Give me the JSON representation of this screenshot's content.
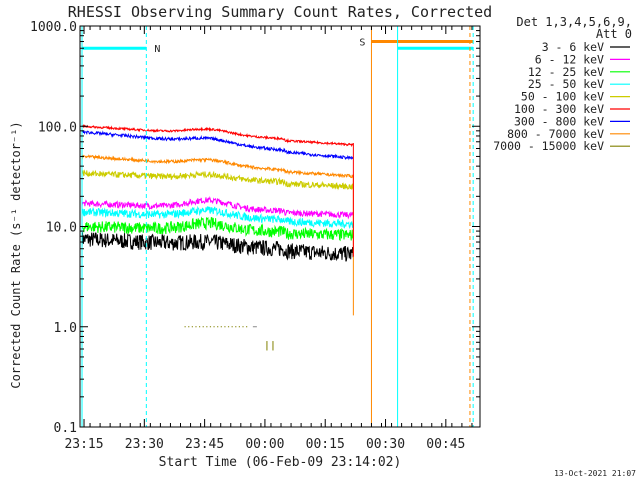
{
  "chart_data": {
    "type": "line",
    "title": "RHESSI Observing Summary Count Rates, Corrected",
    "ylabel": "Corrected Count Rate (s⁻¹ detector⁻¹)",
    "xlabel": "Start Time (06-Feb-09 23:14:02)",
    "y_scale": "log",
    "ylim": [
      0.1,
      1000
    ],
    "xlim": [
      "23:14:02",
      "00:53:30"
    ],
    "y_ticks": [
      "0.1",
      "1.0",
      "10.0",
      "100.0",
      "1000.0"
    ],
    "x_ticks": [
      {
        "label": "23:15",
        "min": -1
      },
      {
        "label": "23:30",
        "min": 14
      },
      {
        "label": "23:45",
        "min": 29
      },
      {
        "label": "00:00",
        "min": 44
      },
      {
        "label": "00:15",
        "min": 59
      },
      {
        "label": "00:30",
        "min": 74
      },
      {
        "label": "00:45",
        "min": 89
      }
    ],
    "legend_header": [
      "Det 1,3,4,5,6,9,",
      "Att 0"
    ],
    "series": [
      {
        "name": "3 - 6 keV",
        "color": "#000000",
        "start": 7.5,
        "end": 5.5,
        "bump": 0.5,
        "noise": 0.08
      },
      {
        "name": "6 - 12 keV",
        "color": "#ff00ff",
        "start": 17,
        "end": 13.5,
        "bump": 3,
        "noise": 0.03
      },
      {
        "name": "12 - 25 keV",
        "color": "#00ff00",
        "start": 10,
        "end": 8.5,
        "bump": 1.5,
        "noise": 0.06
      },
      {
        "name": "25 - 50 keV",
        "color": "#00ffff",
        "start": 14,
        "end": 11,
        "bump": 2,
        "noise": 0.04
      },
      {
        "name": "50 - 100 keV",
        "color": "#cccc00",
        "start": 34,
        "end": 26,
        "bump": 3,
        "noise": 0.03
      },
      {
        "name": "100 - 300 keV",
        "color": "#ff0000",
        "start": 100,
        "end": 68,
        "bump": 10,
        "noise": 0.01
      },
      {
        "name": "300 - 800 keV",
        "color": "#0000ff",
        "start": 88,
        "end": 50,
        "bump": 8,
        "noise": 0.015
      },
      {
        "name": "800 - 7000 keV",
        "color": "#ff8800",
        "start": 50,
        "end": 33,
        "bump": 5,
        "noise": 0.015
      },
      {
        "name": "7000 - 15000 keV",
        "color": "#808000",
        "start": 1,
        "end": 1,
        "bump": 0,
        "noise": 0
      }
    ],
    "data_end_min": 66,
    "flags": [
      {
        "label": "N",
        "color": "#00ffff",
        "level": 600,
        "from_min": -1.5,
        "to_min": 14.5
      },
      {
        "label": "S",
        "color": "#ff8800",
        "level": 700,
        "from_min": 70.5,
        "to_min": 95.8
      },
      {
        "label": "",
        "color": "#00ffff",
        "level": 600,
        "from_min": 77,
        "to_min": 95.8
      }
    ]
  },
  "footer_timestamp": "13-Oct-2021 21:07",
  "colors": {
    "background": "#ffffff",
    "axes": "#000000"
  }
}
